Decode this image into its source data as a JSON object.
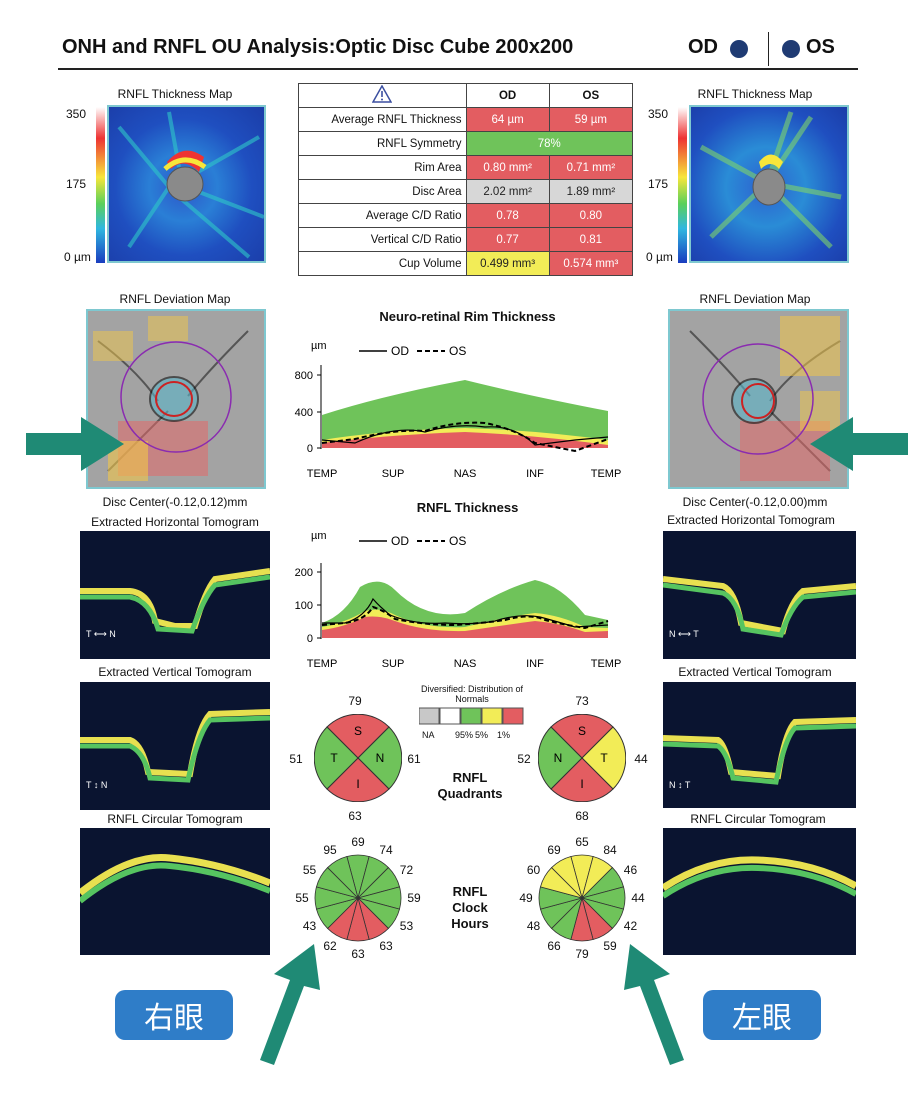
{
  "header": {
    "title": "ONH and RNFL OU Analysis:Optic Disc Cube 200x200",
    "od": "OD",
    "os": "OS"
  },
  "thickness_map": {
    "title": "RNFL Thickness Map",
    "scale_top": "350",
    "scale_mid": "175",
    "scale_bottom": "0 µm"
  },
  "deviation_map": {
    "title": "RNFL Deviation Map"
  },
  "disc_center": {
    "od": "Disc Center(-0.12,0.12)mm",
    "os": "Disc Center(-0.12,0.00)mm"
  },
  "tomograms": {
    "horizontal": "Extracted Horizontal Tomogram",
    "vertical": "Extracted Vertical Tomogram",
    "circular": "RNFL Circular Tomogram"
  },
  "tomo_labels": {
    "od_h": "T ⟷ N",
    "od_v": "T ↕ N",
    "os_h": "N ⟷ T",
    "os_v": "N ↕ T"
  },
  "metrics": {
    "header_od": "OD",
    "header_os": "OS",
    "warning_icon": "warning-triangle-icon",
    "rows": [
      {
        "label": "Average RNFL Thickness",
        "od": "64 µm",
        "os": "59 µm"
      },
      {
        "label": "RNFL Symmetry",
        "both": "78%"
      },
      {
        "label": "Rim Area",
        "od": "0.80 mm²",
        "os": "0.71 mm²"
      },
      {
        "label": "Disc Area",
        "od": "2.02 mm²",
        "os": "1.89 mm²"
      },
      {
        "label": "Average C/D Ratio",
        "od": "0.78",
        "os": "0.80"
      },
      {
        "label": "Vertical C/D Ratio",
        "od": "0.77",
        "os": "0.81"
      },
      {
        "label": "Cup Volume",
        "od": "0.499 mm³",
        "os": "0.574 mm³"
      }
    ]
  },
  "rim_chart": {
    "title": "Neuro-retinal Rim Thickness",
    "unit": "µm",
    "legend_od": "OD",
    "legend_os": "OS",
    "yticks": [
      "800",
      "400",
      "0"
    ],
    "xticks": [
      "TEMP",
      "SUP",
      "NAS",
      "INF",
      "TEMP"
    ]
  },
  "rnfl_chart": {
    "title": "RNFL Thickness",
    "unit": "µm",
    "legend_od": "OD",
    "legend_os": "OS",
    "yticks": [
      "200",
      "100",
      "0"
    ],
    "xticks": [
      "TEMP",
      "SUP",
      "NAS",
      "INF",
      "TEMP"
    ]
  },
  "normals_legend": {
    "title": "Diversified: Distribution of Normals",
    "labels": [
      "NA",
      "95%",
      "5%",
      "1%"
    ],
    "colors": [
      "#c8c8c8",
      "#ffffff",
      "#6fc35a",
      "#f2ec57",
      "#e35d61"
    ]
  },
  "quadrants": {
    "label": "RNFL Quadrants",
    "od": {
      "S": "79",
      "T": "51",
      "N": "61",
      "I": "63",
      "S_label": "S",
      "T_label": "T",
      "N_label": "N",
      "I_label": "I"
    },
    "os": {
      "S": "73",
      "N": "52",
      "T": "44",
      "I": "68",
      "S_label": "S",
      "T_label": "T",
      "N_label": "N",
      "I_label": "I"
    }
  },
  "clock_hours": {
    "label": "RNFL Clock Hours",
    "od": [
      "69",
      "74",
      "72",
      "59",
      "53",
      "63",
      "63",
      "62",
      "43",
      "55",
      "55",
      "95"
    ],
    "os": [
      "65",
      "84",
      "46",
      "44",
      "42",
      "59",
      "79",
      "66",
      "48",
      "49",
      "60",
      "69"
    ]
  },
  "chinese": {
    "right_eye": "右眼",
    "left_eye": "左眼"
  },
  "colors": {
    "red": "#e35d61",
    "green": "#6fc35a",
    "yellow": "#f2ec57",
    "gray": "#d7d7d7",
    "teal_arrow": "#1f8a75",
    "blue_button": "#2f7dc8"
  }
}
